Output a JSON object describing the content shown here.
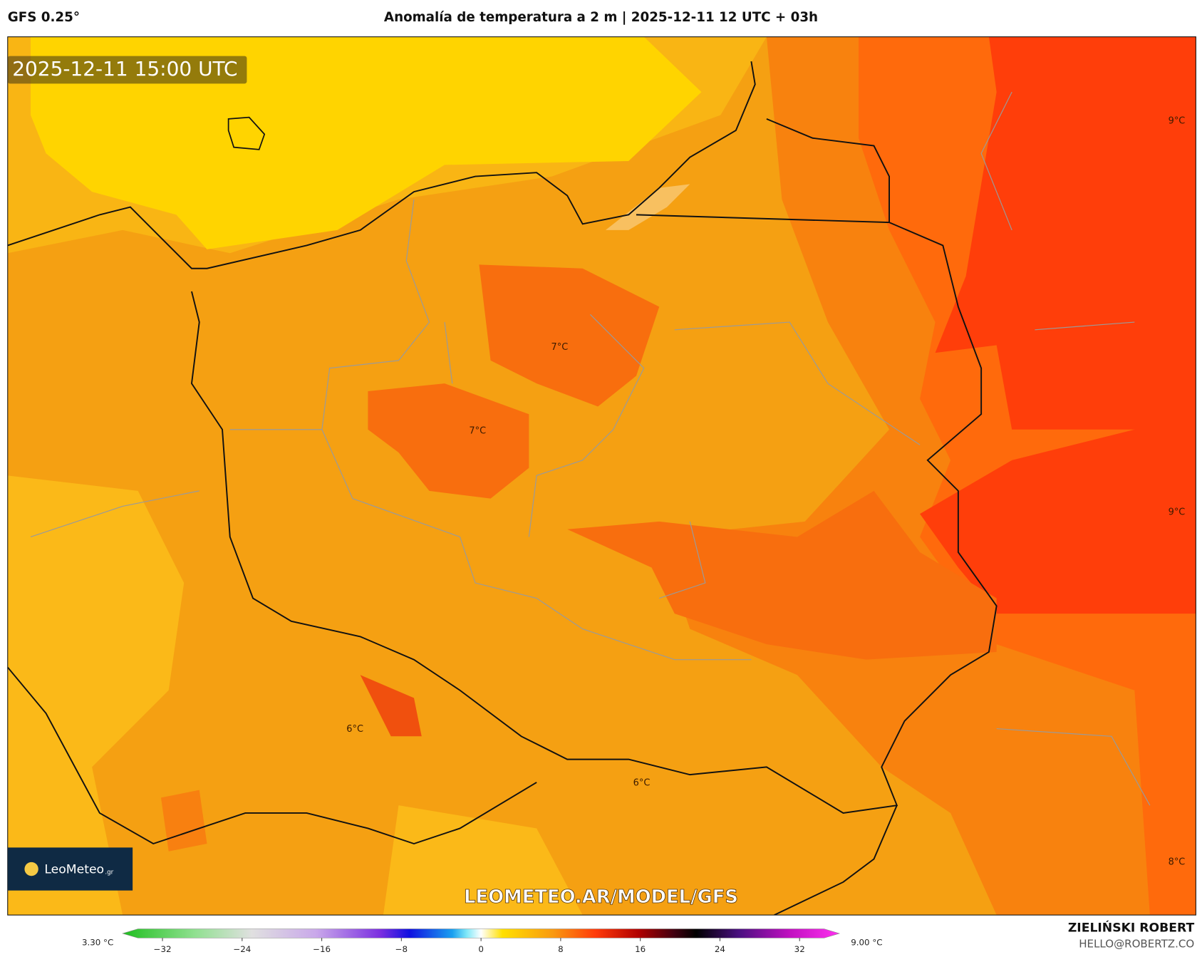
{
  "header": {
    "model": "GFS 0.25°",
    "title": "Anomalía de temperatura a 2 m | 2025-12-11 12 UTC + 03h"
  },
  "map": {
    "timestamp": "2025-12-11 15:00 UTC",
    "labels": [
      "9°C",
      "9°C",
      "7°C",
      "7°C",
      "6°C",
      "6°C",
      "8°C"
    ],
    "watermark": "LEOMETEO.AR/MODEL/GFS",
    "logo": "LeoMeteo",
    "logo_suffix": ".gr"
  },
  "colorbar": {
    "lim": [
      -36,
      36
    ],
    "ticks": [
      {
        "value": -32,
        "label": "−32"
      },
      {
        "value": -24,
        "label": "−24"
      },
      {
        "value": -16,
        "label": "−16"
      },
      {
        "value": -8,
        "label": "−8"
      },
      0,
      8,
      16,
      24,
      32
    ],
    "min_label": "3.30 °C",
    "max_label": "9.00 °C"
  },
  "credits": {
    "author": "ZIELIŃSKI ROBERT",
    "contact": "HELLO@ROBERTZ.CO"
  }
}
